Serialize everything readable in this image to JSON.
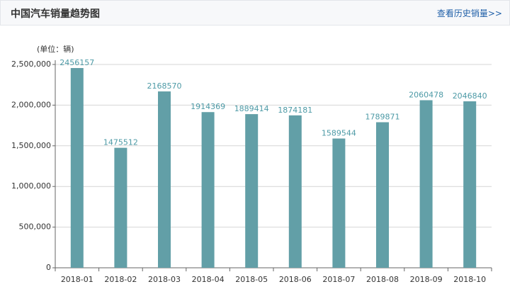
{
  "header": {
    "title": "中国汽车销量趋势图",
    "link": "查看历史销量>>"
  },
  "chart_data": {
    "type": "bar",
    "ylabel": "(单位：辆)",
    "categories": [
      "2018-01",
      "2018-02",
      "2018-03",
      "2018-04",
      "2018-05",
      "2018-06",
      "2018-07",
      "2018-08",
      "2018-09",
      "2018-10"
    ],
    "values": [
      2456157,
      1475512,
      2168570,
      1914369,
      1889414,
      1874181,
      1589544,
      1789871,
      2060478,
      2046840
    ],
    "color": "#629fa7",
    "ylim": [
      0,
      2500000
    ],
    "yticks": [
      0,
      {
        "value": 500000,
        "label": "500,000"
      },
      {
        "value": 1000000,
        "label": "1,000,000"
      },
      {
        "value": 1500000,
        "label": "1,500,000"
      },
      {
        "value": 2000000,
        "label": "2,000,000"
      },
      {
        "value": 2500000,
        "label": "2,500,000"
      }
    ],
    "grid": true
  }
}
